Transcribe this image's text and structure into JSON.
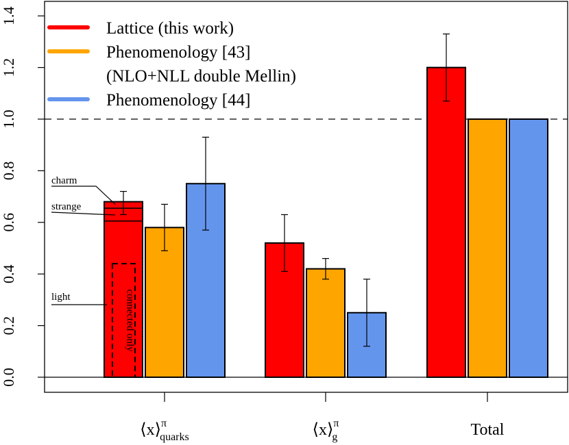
{
  "chart_data": {
    "type": "bar",
    "ylim": [
      0,
      1.45
    ],
    "yticks": [
      "0.0",
      "0.2",
      "0.4",
      "0.6",
      "0.8",
      "1.0",
      "1.2",
      "1.4"
    ],
    "reference_line": 1.0,
    "legend_position": "top-left",
    "grid": false,
    "categories": [
      {
        "base": "⟨x⟩",
        "sup": "π",
        "sub": "quarks"
      },
      {
        "base": "⟨x⟩",
        "sup": "π",
        "sub": "g"
      },
      {
        "base": "Total",
        "sup": "",
        "sub": ""
      }
    ],
    "series": [
      {
        "name": "Lattice (this work)",
        "color": "#ff0000",
        "values": [
          0.68,
          0.52,
          1.2
        ],
        "errors": [
          [
            0.63,
            0.72
          ],
          [
            0.41,
            0.63
          ],
          [
            1.07,
            1.33
          ]
        ]
      },
      {
        "name": "Phenomenology [43]",
        "color": "#ffa500",
        "values": [
          0.58,
          0.42,
          1.0
        ],
        "errors": [
          [
            0.49,
            0.67
          ],
          [
            0.38,
            0.46
          ],
          null
        ]
      },
      {
        "name": "Phenomenology [44]",
        "color": "#6495ed",
        "values": [
          0.75,
          0.25,
          1.0
        ],
        "errors": [
          [
            0.57,
            0.93
          ],
          [
            0.12,
            0.38
          ],
          null
        ]
      }
    ],
    "legend_extra_line": "(NLO+NLL double Mellin)",
    "quark_breakdown": {
      "segments": [
        {
          "name": "charm",
          "value": 0.68
        },
        {
          "name": "strange",
          "value": 0.655
        },
        {
          "name": "light",
          "value": 0.605
        }
      ],
      "connected_only": {
        "label": "connected only",
        "value": 0.44
      }
    }
  }
}
